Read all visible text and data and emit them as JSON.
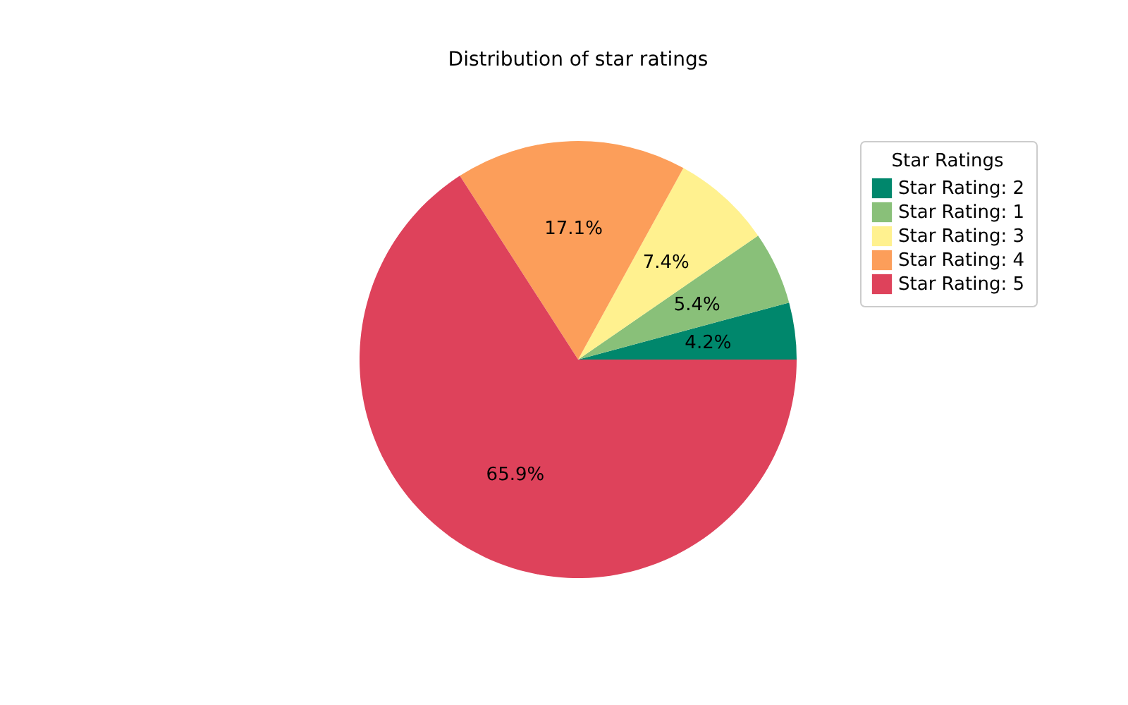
{
  "chart_data": {
    "type": "pie",
    "title": "Distribution of star ratings",
    "legend_title": "Star Ratings",
    "legend": "right",
    "categories": [
      "Star Rating: 2",
      "Star Rating: 1",
      "Star Rating: 3",
      "Star Rating: 4",
      "Star Rating: 5"
    ],
    "values": [
      4.2,
      5.4,
      7.4,
      17.1,
      65.9
    ],
    "colors": [
      "#00876c",
      "#89c079",
      "#fff18f",
      "#fc9e5a",
      "#de425b"
    ],
    "value_labels": [
      "4.2%",
      "5.4%",
      "7.4%",
      "17.1%",
      "65.9%"
    ]
  }
}
